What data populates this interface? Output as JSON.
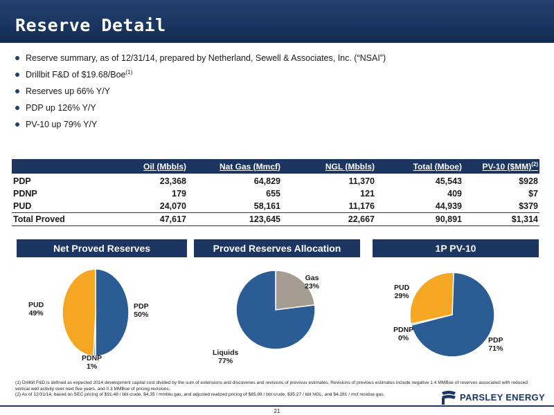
{
  "title": "Reserve Detail",
  "bullets": [
    {
      "text": "Reserve summary, as of 12/31/14, prepared by Netherland, Sewell & Associates, Inc. (“NSAI”)",
      "sup": ""
    },
    {
      "text": "Drillbit F&D of $19.68/Boe",
      "sup": "(1)"
    },
    {
      "text": "Reserves up 66% Y/Y",
      "sup": ""
    },
    {
      "text": "PDP up 126% Y/Y",
      "sup": ""
    },
    {
      "text": "PV-10 up 79% Y/Y",
      "sup": ""
    }
  ],
  "table": {
    "headers": [
      "Oil (Mbbls)",
      "Nat Gas (Mmcf)",
      "NGL (Mbbls)",
      "Total (Mboe)",
      "PV-10 ($MM)"
    ],
    "pv_sup": "(2)",
    "rows": [
      [
        "PDP",
        "23,368",
        "64,829",
        "11,370",
        "45,543",
        "$928"
      ],
      [
        "PDNP",
        "179",
        "655",
        "121",
        "409",
        "$7"
      ],
      [
        "PUD",
        "24,070",
        "58,161",
        "11,176",
        "44,939",
        "$379"
      ],
      [
        "Total Proved",
        "47,617",
        "123,645",
        "22,667",
        "90,891",
        "$1,314"
      ]
    ]
  },
  "panels": [
    "Net Proved Reserves",
    "Proved Reserves Allocation",
    "1P PV-10"
  ],
  "colors": {
    "navy": "#1c3661",
    "pdp": "#2b5d94",
    "pud": "#f5a623",
    "gas": "#a59d92",
    "pdnp": "#5aa3e0"
  },
  "chart_data": [
    {
      "type": "pie",
      "title": "Net Proved Reserves",
      "slices": [
        {
          "label": "PDP",
          "value": 50,
          "display": "50%",
          "color": "#2b5d94"
        },
        {
          "label": "PDNP",
          "value": 1,
          "display": "1%",
          "color": "#5aa3e0"
        },
        {
          "label": "PUD",
          "value": 49,
          "display": "49%",
          "color": "#f5a623"
        }
      ]
    },
    {
      "type": "pie",
      "title": "Proved Reserves Allocation",
      "slices": [
        {
          "label": "Gas",
          "value": 23,
          "display": "23%",
          "color": "#a59d92"
        },
        {
          "label": "Liquids",
          "value": 77,
          "display": "77%",
          "color": "#2b5d94"
        }
      ]
    },
    {
      "type": "pie",
      "title": "1P PV-10",
      "slices": [
        {
          "label": "PDP",
          "value": 71,
          "display": "71%",
          "color": "#2b5d94"
        },
        {
          "label": "PDNP",
          "value": 0,
          "display": "0%",
          "color": "#5aa3e0"
        },
        {
          "label": "PUD",
          "value": 29,
          "display": "29%",
          "color": "#f5a623"
        }
      ]
    }
  ],
  "footnotes": [
    "(1) Drillbit F&D is defined as expected 2014 development capital cost divided by the sum of extensions and discoveries and revisions of previous estimates. Revisions of previous estimates include negative 1.4 MMBoe of reserves associated with reduced vertical well activity over next five years, and 0.3 MMBoe of pricing revisions.",
    "(2) As of 12/31/14, based on SEC pricing of $91.48 / bbl crude, $4.35 / mmbtu gas, and adjusted realized pricing of $85.99 / bbl crude, $35.27 / bbl NGL, and $4.281 / mcf residue gas."
  ],
  "logo_text": "PARSLEY ENERGY",
  "page_number": "21"
}
